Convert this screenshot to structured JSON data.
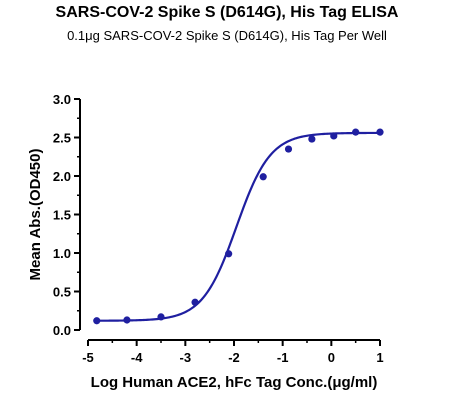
{
  "chart_data": {
    "type": "scatter",
    "title": "SARS-COV-2 Spike S (D614G), His Tag ELISA",
    "subtitle": "0.1μg SARS-COV-2 Spike S (D614G), His Tag Per Well",
    "xlabel": "Log Human ACE2, hFc Tag Conc.(μg/ml)",
    "ylabel": "Mean Abs.(OD450)",
    "xlim": [
      -5,
      1
    ],
    "ylim": [
      0,
      3
    ],
    "xticks": [
      "-5",
      "-4",
      "-3",
      "-2",
      "-1",
      "0",
      "1"
    ],
    "yticks": [
      "0.0",
      "0.5",
      "1.0",
      "1.5",
      "2.0",
      "2.5",
      "3.0"
    ],
    "grid": false,
    "series": [
      {
        "color": "#1f1fa0",
        "x": [
          -4.82,
          -4.2,
          -3.5,
          -2.8,
          -2.11,
          -1.4,
          -0.88,
          -0.4,
          0.05,
          0.5,
          1.0
        ],
        "y": [
          0.12,
          0.13,
          0.17,
          0.36,
          0.99,
          1.99,
          2.35,
          2.48,
          2.52,
          2.57,
          2.57
        ]
      }
    ],
    "fit_curve": {
      "color": "#1f1fa0",
      "bottom": 0.12,
      "top": 2.56,
      "log_ec50": -1.95,
      "hill_slope": 1.25
    }
  }
}
